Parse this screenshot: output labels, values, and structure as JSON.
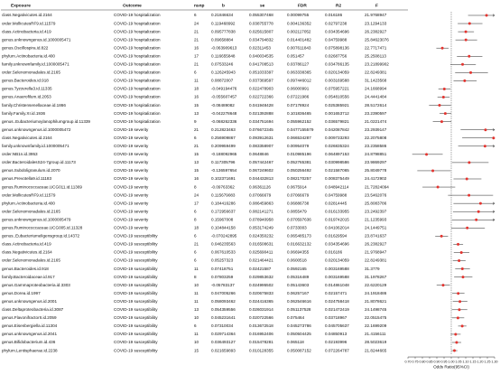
{
  "table": {
    "columns": [
      "Exposure",
      "Outcome",
      "nsnp",
      "b",
      "se",
      "FDR",
      "R2",
      "F"
    ],
    "rows": [
      [
        "class.Negativicutes.id.2164",
        "COVID-19 hospitalization",
        6,
        0.21846634,
        0.055307468,
        0.00099755,
        0.016186,
        21.9768947
      ],
      [
        "order.MollicutesRF9.id.11579",
        "COVID-19 hospitalization",
        24,
        0.119468992,
        0.038755778,
        0.004136352,
        0.02797238,
        23.1294133
      ],
      [
        "class.Actinobacteria.id.419",
        "COVID-19 hospitalization",
        21,
        0.095777838,
        0.025615807,
        0.002117052,
        0.034354696,
        26.2382927
      ],
      [
        "genus.unknowngenus.id.1000005471",
        "COVID-19 hospitalization",
        21,
        0.09658884,
        0.034794832,
        0.014401482,
        0.04759988,
        25.84623076
      ],
      [
        "genus.Oscillospira.id.822",
        "COVID-19 hospitalization",
        16,
        -0.063909613,
        0.02311453,
        0.007611843,
        0.075898136,
        22.7717471
      ],
      [
        "phylum.Actinobacteria.id.400",
        "COVID-19 hospitalization",
        17,
        0.116655848,
        0.040034535,
        0.051457,
        0.02687756,
        25.2508113
      ],
      [
        "family.unknownfamily.id.1000005471",
        "COVID-19 hospitalization",
        21,
        0.07533246,
        0.041708513,
        0.03786127,
        0.034786135,
        23.21899902
      ],
      [
        "order.Selenomonadales.id.2165",
        "COVID-19 hospitalization",
        6,
        0.126245943,
        0.051033397,
        0.063338365,
        0.020134059,
        22.8249381
      ],
      [
        "genus.Bacteroides.id.918",
        "COVID-19 hospitalization",
        11,
        0.08872007,
        0.037369597,
        0.097446012,
        0.003169588,
        31.1423568
      ],
      [
        "genus.Tyzzerella3.id.11335",
        "COVID-19 hospitalization",
        18,
        -0.049194476,
        0.022478903,
        0.06000991,
        0.075957221,
        24.1668994
      ],
      [
        "genus.Anaerofilum.id.2053",
        "COVID-19 hospitalization",
        16,
        -0.055607457,
        0.022722366,
        0.07221986,
        0.054810556,
        24.4441484
      ],
      [
        "family.Christensenellaceae.id.1866",
        "COVID-19 hospitalization",
        15,
        -0.08489082,
        0.041948428,
        0.07178924,
        0.025385921,
        28.5172614
      ],
      [
        "family.Family.XI.id.1936",
        "COVID-19 hospitalization",
        13,
        -0.042278648,
        0.021392888,
        0.101836465,
        0.001653712,
        23.2390597
      ],
      [
        "genus..Eubacteriumxylanophilumgroup.id.11339",
        "COVID-19 hospitalization",
        9,
        -0.068262336,
        0.034751694,
        0.055962152,
        0.036579821,
        21.0221474
      ],
      [
        "genus.unknowngenus.id.1000005472",
        "COVID-19 severity",
        21,
        0.212823463,
        0.076672345,
        0.0477155579,
        0.042087842,
        23.2939147
      ],
      [
        "class.Negativicutes.id.2164",
        "COVID-19 severity",
        6,
        0.256909867,
        0.093912631,
        0.066534287,
        0.009733293,
        22.2075808
      ],
      [
        "family.unknownfamily.id.1000005471",
        "COVID-19 severity",
        21,
        0.209959499,
        0.083358907,
        0.00954079,
        0.026835324,
        23.2358586
      ],
      [
        "order.NB1n.id.3953",
        "COVID-19 severity",
        15,
        -0.188092965,
        0.0648846,
        0.010985196,
        0.064897153,
        24.8798851
      ],
      [
        "order.BacteroidalesS24-7group.id.11173",
        "COVID-19 severity",
        13,
        0.117305796,
        0.057442467,
        0.052765381,
        0.030998586,
        23.9869297
      ],
      [
        "genus.Subdoligranulum.id.2070",
        "COVID-19 severity",
        15,
        -0.136597654,
        0.067249602,
        0.050256492,
        0.021587065,
        25.8049778
      ],
      [
        "genus.Prevotella9.id.11183",
        "COVID-19 severity",
        16,
        0.102371691,
        0.044432813,
        0.082170257,
        0.008375449,
        24.4172902
      ],
      [
        "genus.Ruminococcaceae.UCG011.id.11369",
        "COVID-19 severity",
        8,
        -0.09763362,
        0.06361126,
        0.0675914,
        0.048942114,
        21.72824094
      ],
      [
        "order.MollicutesRF9.id.11579",
        "COVID-19 severity",
        24,
        0.115679083,
        0.07066679,
        0.07066679,
        0.04759988,
        23.5462076
      ],
      [
        "phylum.Actinobacteria.id.400",
        "COVID-19 severity",
        17,
        0.184416286,
        0.086459863,
        0.06886738,
        0.02814445,
        25.8083786
      ],
      [
        "order.Selenomonadales.id.2165",
        "COVID-19 severity",
        6,
        0.172956637,
        0.082141271,
        0.0855479,
        0.016133955,
        23.2492397
      ],
      [
        "genus.unknowngenus.id.1000005479",
        "COVID-19 severity",
        8,
        0.15967008,
        0.078940958,
        0.070597636,
        0.019742015,
        21.1235993
      ],
      [
        "genus.Ruminococcaceae.UCG005.id.11328",
        "COVID-19 severity",
        18,
        0.104844158,
        0.053174249,
        0.0733003,
        0.041062014,
        24.1449751
      ],
      [
        "genus..Eubacteriumeligensgroup.id.14372",
        "COVID-19 susceptibility",
        6,
        -0.070242895,
        0.024350232,
        0.065485173,
        0.01629594,
        23.8741637
      ],
      [
        "class.Actinobacteria.id.419",
        "COVID-19 susceptibility",
        21,
        0.046235563,
        0.016508631,
        0.016632132,
        0.034354696,
        26.2382927
      ],
      [
        "class.Negativicutes.id.2164",
        "COVID-19 susceptibility",
        6,
        0.067610533,
        0.025690411,
        0.06694355,
        0.016186,
        21.9768947
      ],
      [
        "order.Selenomonadales.id.2165",
        "COVID-19 susceptibility",
        6,
        0.05257323,
        0.021464421,
        0.0600518,
        0.020134059,
        22.8249381
      ],
      [
        "genus.Bacteroides.id.918",
        "COVID-19 susceptibility",
        11,
        0.07418751,
        0.02421587,
        0.0592165,
        0.003169588,
        31.3779
      ],
      [
        "family.Bacteroidaceae.id.917",
        "COVID-19 susceptibility",
        8,
        0.07803259,
        0.029853632,
        0.05316489,
        0.003169588,
        31.1978267
      ],
      [
        "genus.Gammaproteobacteria.id.3303",
        "COVID-19 susceptibility",
        10,
        -0.05783137,
        0.024995502,
        0.05143603,
        0.014861048,
        22.6220129
      ],
      [
        "genus.Dorea.id.1997",
        "COVID-19 susceptibility",
        11,
        0.047005266,
        0.020675833,
        0.06257167,
        0.02157471,
        24.1918486
      ],
      [
        "genus.unknowngenus.id.2001",
        "COVID-19 susceptibility",
        11,
        0.058093462,
        0.024416365,
        0.062546616,
        0.024758418,
        21.8078621
      ],
      [
        "class.Deltaproteobacteria.id.3087",
        "COVID-19 susceptibility",
        13,
        0.054359556,
        0.026031914,
        0.051137528,
        0.021472419,
        24.1498745
      ],
      [
        "genus.FlavonifractorII.id.2059",
        "COVID-19 susceptibility",
        10,
        0.045231641,
        0.020722566,
        0.075464,
        0.03718967,
        22.0515475
      ],
      [
        "genus.Eisenbergiella.id.11304",
        "COVID-19 susceptibility",
        6,
        0.07310034,
        0.013672518,
        0.045273786,
        0.045705637,
        22.1699209
      ],
      [
        "genus.unknowngenus.id.2041",
        "COVID-19 susceptibility",
        11,
        0.029714364,
        0.016952406,
        0.050504425,
        0.04850913,
        21.4156111
      ],
      [
        "genus.Bifidobacterium.id.436",
        "COVID-19 susceptibility",
        10,
        0.036493127,
        0.015478281,
        0.065118,
        0.02193996,
        28.5023619
      ],
      [
        "phylum.Lentisphaerae.id.2238",
        "COVID-19 susceptibility",
        15,
        0.021659893,
        0.010128355,
        0.050087152,
        0.072264787,
        21.8244665
      ]
    ]
  },
  "forest": {
    "xlabel": "Odds Ratio(95%CI)",
    "xlim": [
      0.7,
      1.3
    ],
    "xticks": [
      {
        "value": 0.7,
        "label": "0.70"
      },
      {
        "value": 0.75,
        "label": "0.75"
      },
      {
        "value": 0.8,
        "label": "0.80"
      },
      {
        "value": 0.85,
        "label": "0.85"
      },
      {
        "value": 0.9,
        "label": "0.90"
      },
      {
        "value": 0.95,
        "label": "0.95"
      },
      {
        "value": 1,
        "label": "1.00"
      },
      {
        "value": 1.05,
        "label": "1.05"
      },
      {
        "value": 1.1,
        "label": "1.10"
      },
      {
        "value": 1.15,
        "label": "1.15"
      },
      {
        "value": 1.2,
        "label": "1.20"
      },
      {
        "value": 1.25,
        "label": "1.25"
      },
      {
        "value": 1.3,
        "label": "1.30"
      }
    ],
    "reference": 1,
    "color": "#e3342f"
  }
}
